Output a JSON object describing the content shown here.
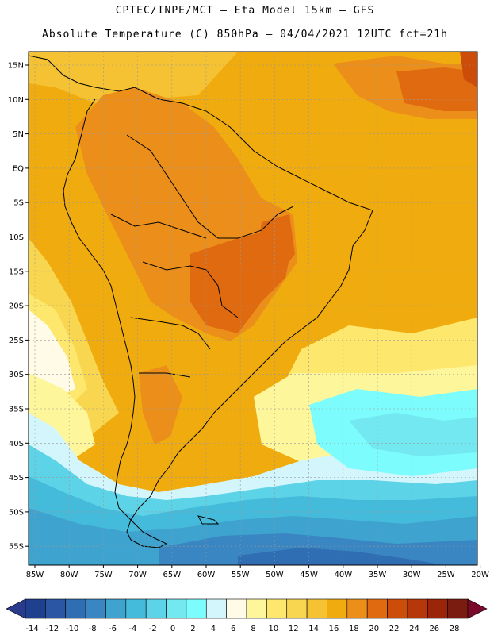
{
  "header": {
    "line1": "CPTEC/INPE/MCT –  Eta Model 15km – GFS",
    "line2": "Absolute Temperature (C) 850hPa – 04/04/2021 12UTC fct=21h"
  },
  "map": {
    "lat_labels": [
      "15N",
      "10N",
      "5N",
      "EQ",
      "5S",
      "10S",
      "15S",
      "20S",
      "25S",
      "30S",
      "35S",
      "40S",
      "45S",
      "50S",
      "55S"
    ],
    "lon_labels": [
      "85W",
      "80W",
      "75W",
      "70W",
      "65W",
      "60W",
      "55W",
      "50W",
      "45W",
      "40W",
      "35W",
      "30W",
      "25W",
      "20W"
    ]
  },
  "colorbar": {
    "labels": [
      "-14",
      "-12",
      "-10",
      "-8",
      "-6",
      "-4",
      "-2",
      "0",
      "2",
      "4",
      "6",
      "8",
      "10",
      "12",
      "14",
      "16",
      "18",
      "20",
      "22",
      "24",
      "26",
      "28"
    ],
    "colors": [
      "#1f3f8f",
      "#2a56a3",
      "#2f6eb3",
      "#3a86c2",
      "#3ea3cf",
      "#45bbdc",
      "#5dd3e8",
      "#74e8f0",
      "#7cfcfc",
      "#d2f6fb",
      "#fffbe6",
      "#fef69a",
      "#fde76c",
      "#f9d64f",
      "#f4c232",
      "#f0ab0e",
      "#eb8f1a",
      "#e06a10",
      "#cc4c0a",
      "#b5370a",
      "#9a2508",
      "#7a1d10"
    ],
    "under_color": "#2a3a8c",
    "over_color": "#7a0a2a"
  }
}
